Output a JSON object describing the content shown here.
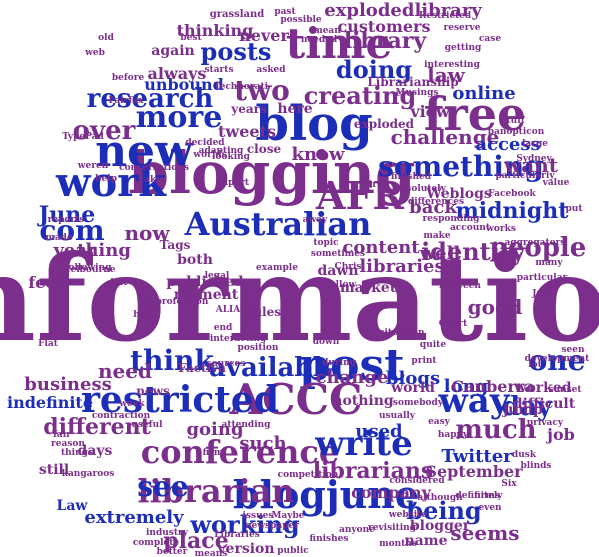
{
  "words": [
    {
      "text": "information",
      "color": "purple",
      "size": 10
    },
    {
      "text": "blogging",
      "color": "purple",
      "size": 6
    },
    {
      "text": "blog",
      "color": "blue",
      "size": 6
    },
    {
      "text": "post",
      "color": "blue",
      "size": 5
    },
    {
      "text": "AFR",
      "color": "purple",
      "size": 5
    },
    {
      "text": "ACCC",
      "color": "purple",
      "size": 5
    },
    {
      "text": "free",
      "color": "purple",
      "size": 5
    },
    {
      "text": "new",
      "color": "blue",
      "size": 5
    },
    {
      "text": "work",
      "color": "blue",
      "size": 5
    },
    {
      "text": "time",
      "color": "purple",
      "size": 4
    },
    {
      "text": "restricted",
      "color": "blue",
      "size": 4
    },
    {
      "text": "conference",
      "color": "purple",
      "size": 4
    },
    {
      "text": "blogjune",
      "color": "blue",
      "size": 4
    },
    {
      "text": "Australian",
      "color": "blue",
      "size": 4
    },
    {
      "text": "something",
      "color": "blue",
      "size": 4
    },
    {
      "text": "write",
      "color": "blue",
      "size": 4
    },
    {
      "text": "librarian",
      "color": "purple",
      "size": 4
    },
    {
      "text": "librarians",
      "color": "purple",
      "size": 3
    },
    {
      "text": "see",
      "color": "blue",
      "size": 4
    },
    {
      "text": "way",
      "color": "blue",
      "size": 4
    },
    {
      "text": "more",
      "color": "blue",
      "size": 4
    },
    {
      "text": "research",
      "color": "blue",
      "size": 3
    },
    {
      "text": "two",
      "color": "purple",
      "size": 3
    },
    {
      "text": "com",
      "color": "blue",
      "size": 3
    },
    {
      "text": "June",
      "color": "blue",
      "size": 3
    },
    {
      "text": "over",
      "color": "purple",
      "size": 3
    },
    {
      "text": "people",
      "color": "purple",
      "size": 3
    },
    {
      "text": "midnight",
      "color": "blue",
      "size": 3
    },
    {
      "text": "posts",
      "color": "blue",
      "size": 3
    },
    {
      "text": "library",
      "color": "purple",
      "size": 3
    },
    {
      "text": "doing",
      "color": "blue",
      "size": 3
    },
    {
      "text": "creating",
      "color": "purple",
      "size": 3
    },
    {
      "text": "challenge",
      "color": "purple",
      "size": 2
    },
    {
      "text": "available",
      "color": "blue",
      "size": 3
    },
    {
      "text": "think",
      "color": "blue",
      "size": 3
    },
    {
      "text": "identity",
      "color": "purple",
      "size": 3
    },
    {
      "text": "day",
      "color": "blue",
      "size": 3
    },
    {
      "text": "one",
      "color": "blue",
      "size": 3
    },
    {
      "text": "much",
      "color": "purple",
      "size": 3
    },
    {
      "text": "different",
      "color": "purple",
      "size": 2
    },
    {
      "text": "working",
      "color": "blue",
      "size": 3
    },
    {
      "text": "being",
      "color": "blue",
      "size": 3
    },
    {
      "text": "need",
      "color": "purple",
      "size": 2
    },
    {
      "text": "change",
      "color": "purple",
      "size": 2
    },
    {
      "text": "blogs",
      "color": "blue",
      "size": 2
    },
    {
      "text": "business",
      "color": "purple",
      "size": 2
    },
    {
      "text": "now",
      "color": "purple",
      "size": 2
    },
    {
      "text": "want",
      "color": "purple",
      "size": 2
    },
    {
      "text": "access",
      "color": "blue",
      "size": 2
    },
    {
      "text": "law",
      "color": "purple",
      "size": 2
    },
    {
      "text": "online",
      "color": "blue",
      "size": 2
    },
    {
      "text": "view",
      "color": "purple",
      "size": 2
    },
    {
      "text": "going",
      "color": "purple",
      "size": 2
    },
    {
      "text": "such",
      "color": "purple",
      "size": 2
    },
    {
      "text": "Twitter",
      "color": "blue",
      "size": 2
    },
    {
      "text": "September",
      "color": "purple",
      "size": 2
    },
    {
      "text": "used",
      "color": "blue",
      "size": 2
    },
    {
      "text": "good",
      "color": "purple",
      "size": 2
    },
    {
      "text": "place",
      "color": "purple",
      "size": 2
    },
    {
      "text": "seems",
      "color": "purple",
      "size": 2
    },
    {
      "text": "long",
      "color": "blue",
      "size": 2
    },
    {
      "text": "job",
      "color": "purple",
      "size": 2
    },
    {
      "text": "company",
      "color": "purple",
      "size": 2
    },
    {
      "text": "extremely",
      "color": "blue",
      "size": 2
    },
    {
      "text": "thing",
      "color": "purple",
      "size": 2
    },
    {
      "text": "year",
      "color": "purple",
      "size": 2
    },
    {
      "text": "know",
      "color": "purple",
      "size": 2
    },
    {
      "text": "content",
      "color": "purple",
      "size": 2
    },
    {
      "text": "well",
      "color": "purple",
      "size": 2
    },
    {
      "text": "back",
      "color": "purple",
      "size": 2
    },
    {
      "text": "Weblogs",
      "color": "purple",
      "size": 2
    },
    {
      "text": "libraries",
      "color": "purple",
      "size": 2
    },
    {
      "text": "Canberra",
      "color": "purple",
      "size": 2
    },
    {
      "text": "indefinite",
      "color": "blue",
      "size": 2
    },
    {
      "text": "explodedlibrary",
      "color": "purple",
      "size": 2
    },
    {
      "text": "customers",
      "color": "purple",
      "size": 2
    },
    {
      "text": "never",
      "color": "purple",
      "size": 2
    },
    {
      "text": "thinking",
      "color": "purple",
      "size": 2
    },
    {
      "text": "again",
      "color": "purple",
      "size": 2
    },
    {
      "text": "always",
      "color": "purple",
      "size": 2
    },
    {
      "text": "unbound",
      "color": "blue",
      "size": 2
    },
    {
      "text": "here",
      "color": "purple",
      "size": 2
    },
    {
      "text": "tweets",
      "color": "purple",
      "size": 2
    },
    {
      "text": "feel",
      "color": "purple",
      "size": 2
    },
    {
      "text": "days",
      "color": "purple",
      "size": 2
    },
    {
      "text": "Law",
      "color": "blue",
      "size": 2
    },
    {
      "text": "still",
      "color": "purple",
      "size": 2
    },
    {
      "text": "name",
      "color": "purple",
      "size": 2
    },
    {
      "text": "blogger",
      "color": "purple",
      "size": 2
    },
    {
      "text": "version",
      "color": "purple",
      "size": 2
    },
    {
      "text": "jump",
      "color": "purple",
      "size": 2
    },
    {
      "text": "worked",
      "color": "purple",
      "size": 2
    },
    {
      "text": "difficult",
      "color": "purple",
      "size": 2
    },
    {
      "text": "nothing",
      "color": "purple",
      "size": 2
    },
    {
      "text": "world",
      "color": "purple",
      "size": 2
    },
    {
      "text": "market",
      "color": "purple",
      "size": 2
    },
    {
      "text": "dawn",
      "color": "purple",
      "size": 2
    },
    {
      "text": "published",
      "color": "purple",
      "size": 2
    },
    {
      "text": "both",
      "color": "purple",
      "size": 2
    },
    {
      "text": "moment",
      "color": "purple",
      "size": 2
    },
    {
      "text": "news",
      "color": "purple",
      "size": 2
    },
    {
      "text": "Factiva",
      "color": "purple",
      "size": 2
    },
    {
      "text": "rules",
      "color": "purple",
      "size": 2
    },
    {
      "text": "Tags",
      "color": "purple",
      "size": 2
    },
    {
      "text": "close",
      "color": "purple",
      "size": 2
    },
    {
      "text": "years",
      "color": "purple",
      "size": 2
    },
    {
      "text": "exploded",
      "color": "purple",
      "size": 2
    },
    {
      "text": "Librarianship",
      "color": "purple",
      "size": 2
    },
    {
      "text": "grassland",
      "color": "purple",
      "size": 1
    },
    {
      "text": "getting",
      "color": "purple",
      "size": 1
    },
    {
      "text": "mean",
      "color": "purple",
      "size": 1
    },
    {
      "text": "needed",
      "color": "purple",
      "size": 1
    },
    {
      "text": "possible",
      "color": "purple",
      "size": 1
    },
    {
      "text": "past",
      "color": "purple",
      "size": 1
    },
    {
      "text": "Restricted",
      "color": "purple",
      "size": 1
    },
    {
      "text": "reserve",
      "color": "purple",
      "size": 1
    },
    {
      "text": "case",
      "color": "purple",
      "size": 1
    },
    {
      "text": "before",
      "color": "purple",
      "size": 1
    },
    {
      "text": "starts",
      "color": "purple",
      "size": 1
    },
    {
      "text": "Technorati",
      "color": "purple",
      "size": 1
    },
    {
      "text": "Fairfax",
      "color": "purple",
      "size": 1
    },
    {
      "text": "TypePad",
      "color": "purple",
      "size": 1
    },
    {
      "text": "weren",
      "color": "purple",
      "size": 1
    },
    {
      "text": "reports",
      "color": "purple",
      "size": 1
    },
    {
      "text": "made",
      "color": "purple",
      "size": 1
    },
    {
      "text": "stuff",
      "color": "purple",
      "size": 1
    },
    {
      "text": "panopticon",
      "color": "purple",
      "size": 1
    },
    {
      "text": "Sydney",
      "color": "purple",
      "size": 1
    },
    {
      "text": "particularly",
      "color": "purple",
      "size": 1
    },
    {
      "text": "Facebook",
      "color": "purple",
      "size": 1
    },
    {
      "text": "sunset",
      "color": "purple",
      "size": 1
    },
    {
      "text": "dusk",
      "color": "purple",
      "size": 1
    },
    {
      "text": "blinds",
      "color": "purple",
      "size": 1
    },
    {
      "text": "Six",
      "color": "purple",
      "size": 1
    },
    {
      "text": "firms",
      "color": "purple",
      "size": 1
    },
    {
      "text": "even",
      "color": "purple",
      "size": 1
    },
    {
      "text": "July",
      "color": "purple",
      "size": 1
    },
    {
      "text": "kangaroos",
      "color": "purple",
      "size": 1
    },
    {
      "text": "firm",
      "color": "purple",
      "size": 1
    },
    {
      "text": "industry",
      "color": "purple",
      "size": 1
    },
    {
      "text": "complete",
      "color": "purple",
      "size": 1
    },
    {
      "text": "better",
      "color": "purple",
      "size": 1
    },
    {
      "text": "means",
      "color": "purple",
      "size": 1
    },
    {
      "text": "public",
      "color": "purple",
      "size": 1
    },
    {
      "text": "finishes",
      "color": "purple",
      "size": 1
    },
    {
      "text": "revisiting",
      "color": "purple",
      "size": 1
    },
    {
      "text": "ALIA",
      "color": "purple",
      "size": 1
    },
    {
      "text": "contraction",
      "color": "purple",
      "size": 1
    },
    {
      "text": "useful",
      "color": "purple",
      "size": 1
    },
    {
      "text": "interesting",
      "color": "purple",
      "size": 1
    },
    {
      "text": "week",
      "color": "purple",
      "size": 1
    },
    {
      "text": "sometimes",
      "color": "purple",
      "size": 1
    },
    {
      "text": "adapting",
      "color": "purple",
      "size": 1
    },
    {
      "text": "definitely",
      "color": "purple",
      "size": 1
    },
    {
      "text": "although",
      "color": "purple",
      "size": 1
    },
    {
      "text": "website",
      "color": "purple",
      "size": 1
    },
    {
      "text": "considered",
      "color": "purple",
      "size": 1
    },
    {
      "text": "issues",
      "color": "purple",
      "size": 1
    },
    {
      "text": "Maybe",
      "color": "purple",
      "size": 1
    },
    {
      "text": "newspaper",
      "color": "purple",
      "size": 1
    },
    {
      "text": "anyone",
      "color": "purple",
      "size": 1
    },
    {
      "text": "months",
      "color": "purple",
      "size": 1
    },
    {
      "text": "Libraries",
      "color": "purple",
      "size": 1
    },
    {
      "text": "lot",
      "color": "purple",
      "size": 1
    },
    {
      "text": "print",
      "color": "purple",
      "size": 1
    },
    {
      "text": "Court",
      "color": "purple",
      "size": 1
    },
    {
      "text": "development",
      "color": "purple",
      "size": 1
    },
    {
      "text": "seen",
      "color": "purple",
      "size": 1
    },
    {
      "text": "many",
      "color": "purple",
      "size": 1
    },
    {
      "text": "between",
      "color": "purple",
      "size": 1
    },
    {
      "text": "make",
      "color": "purple",
      "size": 1
    },
    {
      "text": "account",
      "color": "purple",
      "size": 1
    },
    {
      "text": "responding",
      "color": "purple",
      "size": 1
    },
    {
      "text": "differences",
      "color": "purple",
      "size": 1
    },
    {
      "text": "absolutely",
      "color": "purple",
      "size": 1
    },
    {
      "text": "finished",
      "color": "purple",
      "size": 1
    },
    {
      "text": "first",
      "color": "purple",
      "size": 1
    },
    {
      "text": "topic",
      "color": "purple",
      "size": 1
    },
    {
      "text": "away",
      "color": "purple",
      "size": 1
    },
    {
      "text": "looking",
      "color": "purple",
      "size": 1
    },
    {
      "text": "decided",
      "color": "purple",
      "size": 1
    },
    {
      "text": "worlds",
      "color": "purple",
      "size": 1
    },
    {
      "text": "conversations",
      "color": "purple",
      "size": 1
    },
    {
      "text": "take",
      "color": "purple",
      "size": 1
    },
    {
      "text": "help",
      "color": "purple",
      "size": 1
    },
    {
      "text": "Melbourne",
      "color": "purple",
      "size": 1
    },
    {
      "text": "following",
      "color": "purple",
      "size": 1
    },
    {
      "text": "left",
      "color": "purple",
      "size": 1
    },
    {
      "text": "use",
      "color": "purple",
      "size": 1
    },
    {
      "text": "hard",
      "color": "purple",
      "size": 1
    },
    {
      "text": "Flat",
      "color": "purple",
      "size": 1
    },
    {
      "text": "interacting",
      "color": "purple",
      "size": 1
    },
    {
      "text": "position",
      "color": "purple",
      "size": 1
    },
    {
      "text": "down",
      "color": "purple",
      "size": 1
    },
    {
      "text": "sources",
      "color": "purple",
      "size": 1
    },
    {
      "text": "during",
      "color": "purple",
      "size": 1
    },
    {
      "text": "end",
      "color": "purple",
      "size": 1
    },
    {
      "text": "example",
      "color": "purple",
      "size": 1
    },
    {
      "text": "legal",
      "color": "purple",
      "size": 1
    },
    {
      "text": "Chris",
      "color": "purple",
      "size": 1
    },
    {
      "text": "follow",
      "color": "purple",
      "size": 1
    },
    {
      "text": "things",
      "color": "purple",
      "size": 1
    },
    {
      "text": "fair",
      "color": "purple",
      "size": 1
    },
    {
      "text": "reason",
      "color": "purple",
      "size": 1
    },
    {
      "text": "situation",
      "color": "purple",
      "size": 1
    },
    {
      "text": "quite",
      "color": "purple",
      "size": 1
    },
    {
      "text": "somebody",
      "color": "purple",
      "size": 1
    },
    {
      "text": "usually",
      "color": "purple",
      "size": 1
    },
    {
      "text": "attending",
      "color": "purple",
      "size": 1
    },
    {
      "text": "competition",
      "color": "purple",
      "size": 1
    },
    {
      "text": "easy",
      "color": "purple",
      "size": 1
    },
    {
      "text": "happy",
      "color": "purple",
      "size": 1
    },
    {
      "text": "privacy",
      "color": "purple",
      "size": 1
    },
    {
      "text": "large",
      "color": "purple",
      "size": 1
    },
    {
      "text": "value",
      "color": "purple",
      "size": 1
    },
    {
      "text": "Musings",
      "color": "purple",
      "size": 1
    },
    {
      "text": "old",
      "color": "purple",
      "size": 1
    },
    {
      "text": "web",
      "color": "purple",
      "size": 1
    },
    {
      "text": "best",
      "color": "purple",
      "size": 1
    },
    {
      "text": "asked",
      "color": "purple",
      "size": 1
    },
    {
      "text": "eye",
      "color": "purple",
      "size": 1
    },
    {
      "text": "put",
      "color": "purple",
      "size": 1
    },
    {
      "text": "Apart",
      "color": "purple",
      "size": 1
    },
    {
      "text": "works",
      "color": "purple",
      "size": 1
    },
    {
      "text": "aggregators",
      "color": "purple",
      "size": 1
    },
    {
      "text": "particular",
      "color": "purple",
      "size": 1
    },
    {
      "text": "profession",
      "color": "purple",
      "size": 1
    }
  ]
}
